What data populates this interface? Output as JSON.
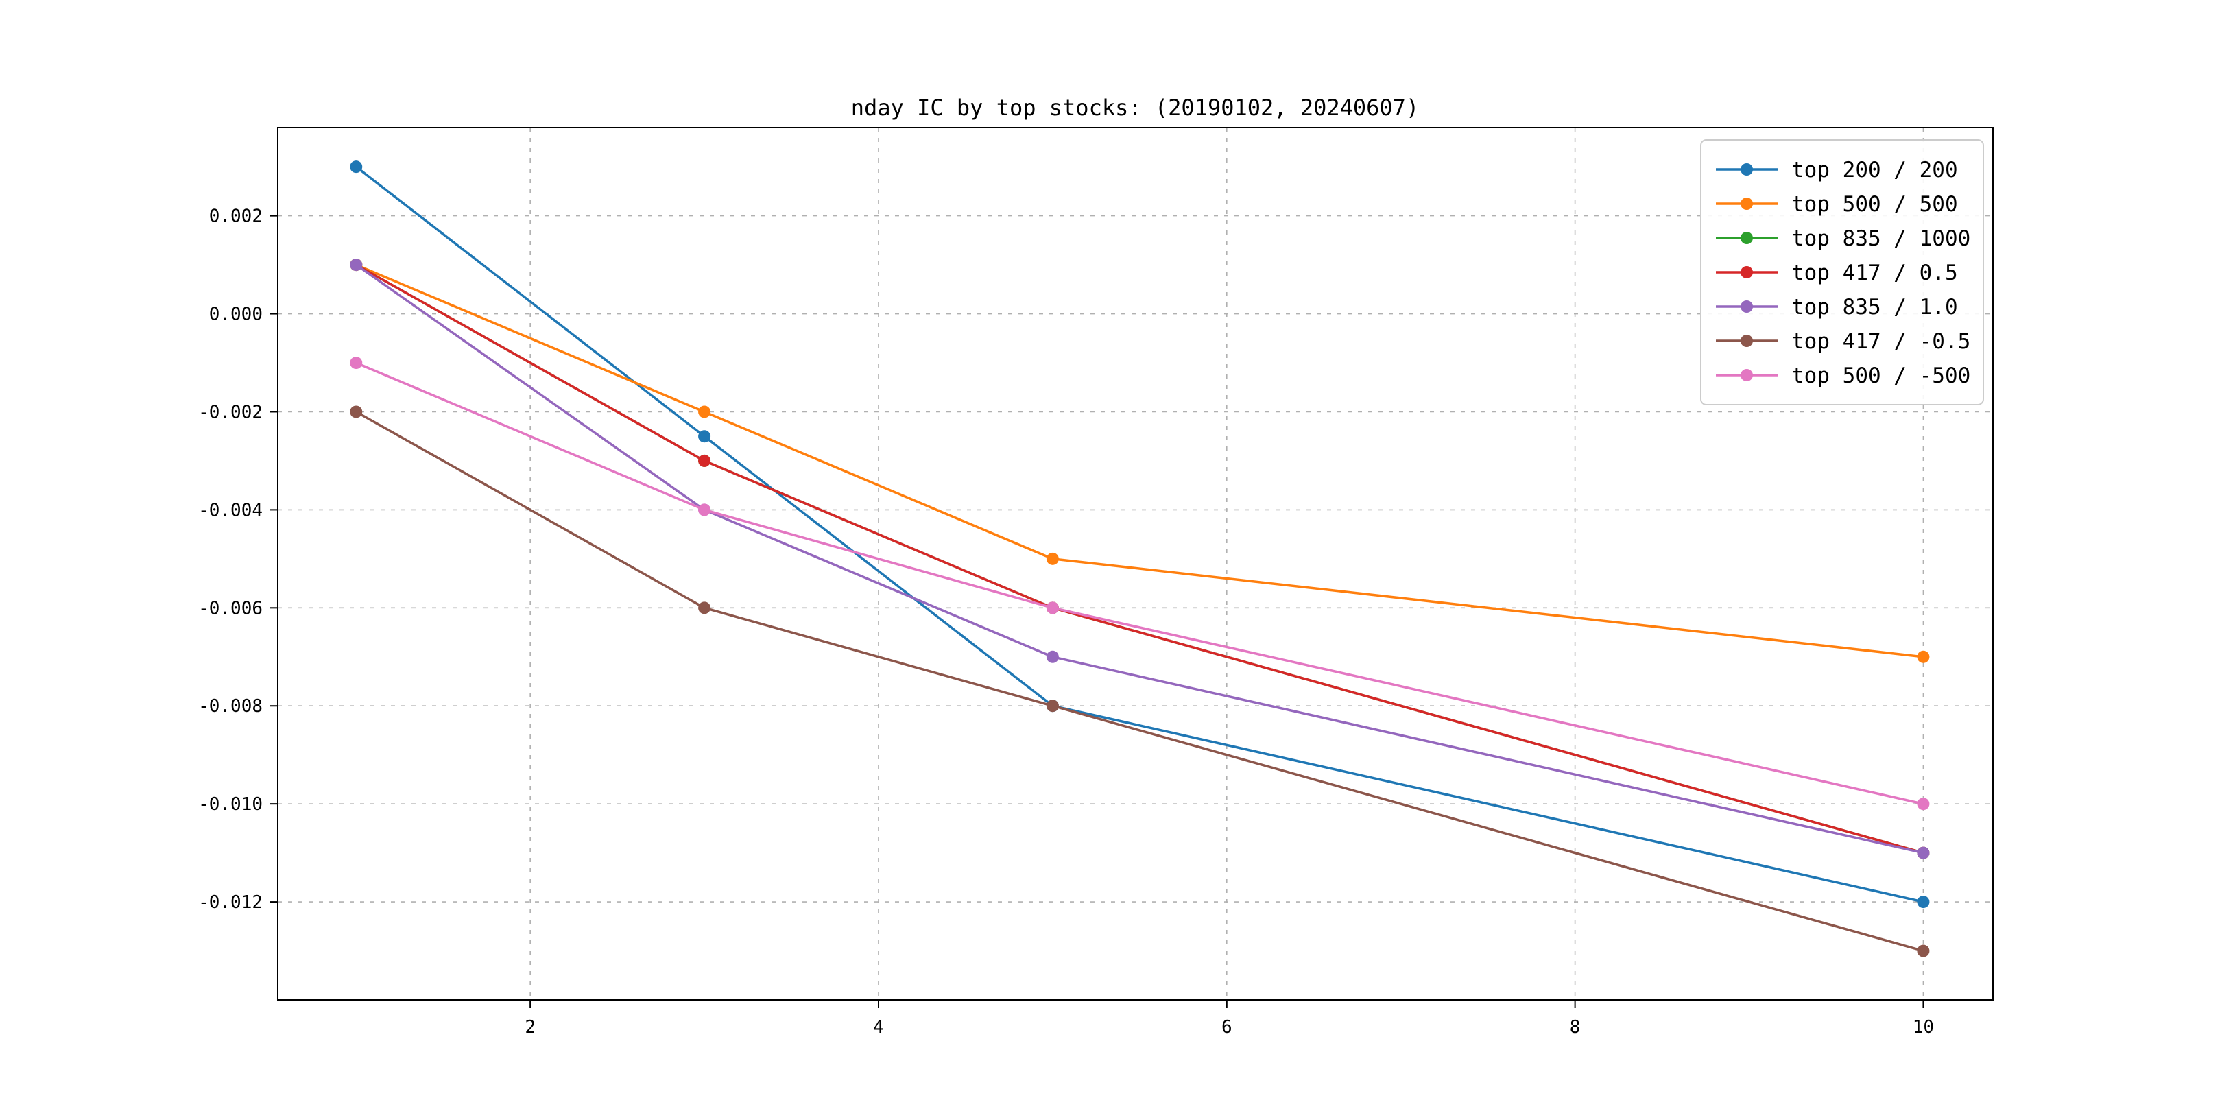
{
  "figure": {
    "background": "#ffffff",
    "frame_color": "#000000",
    "grid_color": "#b0b0b0",
    "legend_border_color": "#cccccc"
  },
  "chart_data": {
    "type": "line",
    "title": "nday IC by top stocks: (20190102, 20240607)",
    "xlabel": "",
    "ylabel": "",
    "x": [
      1,
      3,
      5,
      10
    ],
    "series": [
      {
        "name": "top 200 / 200",
        "color": "#1f77b4",
        "values": [
          0.003,
          -0.0025,
          -0.008,
          -0.012
        ]
      },
      {
        "name": "top 500 / 500",
        "color": "#ff7f0e",
        "values": [
          0.001,
          -0.002,
          -0.005,
          -0.007
        ]
      },
      {
        "name": "top 835 / 1000",
        "color": "#2ca02c",
        "values": [
          0.001,
          -0.003,
          -0.006,
          -0.011
        ]
      },
      {
        "name": "top 417 / 0.5",
        "color": "#d62728",
        "values": [
          0.001,
          -0.003,
          -0.006,
          -0.011
        ]
      },
      {
        "name": "top 835 / 1.0",
        "color": "#9467bd",
        "values": [
          0.001,
          -0.004,
          -0.007,
          -0.011
        ]
      },
      {
        "name": "top 417 / -0.5",
        "color": "#8c564b",
        "values": [
          -0.002,
          -0.006,
          -0.008,
          -0.013
        ]
      },
      {
        "name": "top 500 / -500",
        "color": "#e377c2",
        "values": [
          -0.001,
          -0.004,
          -0.006,
          -0.01
        ]
      }
    ],
    "xticks": [
      2,
      4,
      6,
      8,
      10
    ],
    "xtick_labels": [
      "2",
      "4",
      "6",
      "8",
      "10"
    ],
    "yticks": [
      0.002,
      0.0,
      -0.002,
      -0.004,
      -0.006,
      -0.008,
      -0.01,
      -0.012
    ],
    "ytick_labels": [
      "0.002",
      "0.000",
      "-0.002",
      "-0.004",
      "-0.006",
      "-0.008",
      "-0.010",
      "-0.012"
    ],
    "xlim": [
      0.55,
      10.4
    ],
    "ylim": [
      -0.014,
      0.0038
    ],
    "grid": true,
    "grid_style": "dashed",
    "marker": "o",
    "legend_position": "upper right"
  }
}
